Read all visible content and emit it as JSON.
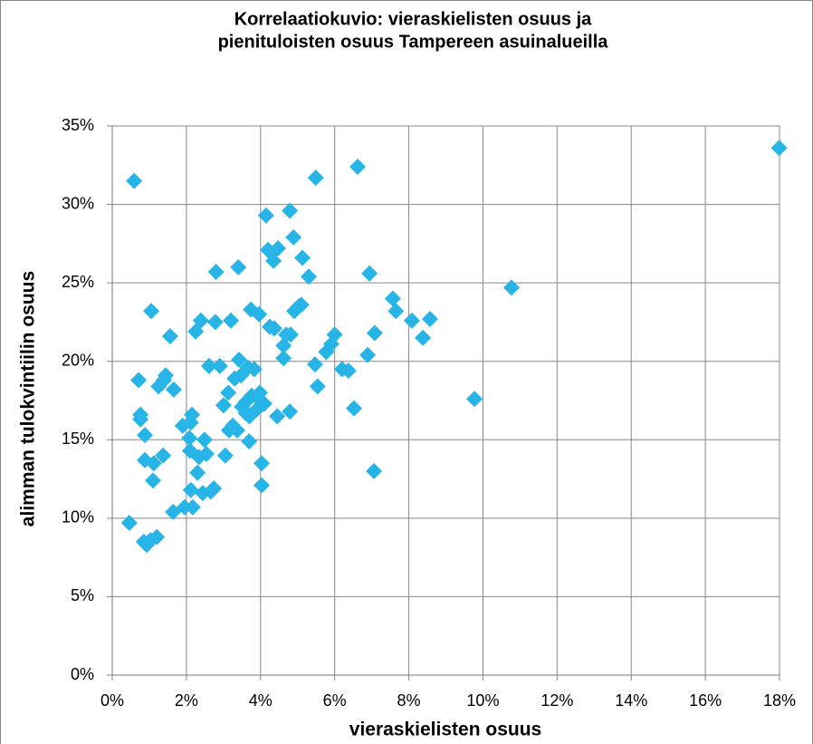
{
  "chart_data": {
    "type": "scatter",
    "title": [
      "Korrelaatiokuvio: vieraskielisten osuus ja",
      "pienituloisten osuus Tampereen asuinalueilla"
    ],
    "xlabel": "vieraskielisten osuus",
    "ylabel": "alimman tulokvintiilin osuus",
    "color": "#27b4e6",
    "grid": true,
    "xlim": [
      0,
      18
    ],
    "ylim": [
      0,
      35
    ],
    "xticks": [
      {
        "value": 0,
        "label": "0%"
      },
      {
        "value": 2,
        "label": "2%"
      },
      {
        "value": 4,
        "label": "4%"
      },
      {
        "value": 6,
        "label": "6%"
      },
      {
        "value": 8,
        "label": "8%"
      },
      {
        "value": 10,
        "label": "10%"
      },
      {
        "value": 12,
        "label": "12%"
      },
      {
        "value": 14,
        "label": "14%"
      },
      {
        "value": 16,
        "label": "16%"
      },
      {
        "value": 18,
        "label": "18%"
      }
    ],
    "yticks": [
      {
        "value": 0,
        "label": "0%"
      },
      {
        "value": 5,
        "label": "5%"
      },
      {
        "value": 10,
        "label": "10%"
      },
      {
        "value": 15,
        "label": "15%"
      },
      {
        "value": 20,
        "label": "20%"
      },
      {
        "value": 25,
        "label": "25%"
      },
      {
        "value": 30,
        "label": "30%"
      },
      {
        "value": 35,
        "label": "35%"
      }
    ],
    "x": [
      0.59,
      0.46,
      0.71,
      0.76,
      0.76,
      0.88,
      0.88,
      0.85,
      0.93,
      1.03,
      1.2,
      1.05,
      1.1,
      1.12,
      1.25,
      1.37,
      1.39,
      1.44,
      1.56,
      1.66,
      1.64,
      1.9,
      1.95,
      2.08,
      2.12,
      2.15,
      2.1,
      2.12,
      2.17,
      2.25,
      2.3,
      2.34,
      2.39,
      2.44,
      2.49,
      2.54,
      2.66,
      2.74,
      2.61,
      2.78,
      2.8,
      2.9,
      3.0,
      3.05,
      3.13,
      3.15,
      3.2,
      3.25,
      3.3,
      3.4,
      3.37,
      3.42,
      3.47,
      3.5,
      3.6,
      3.6,
      3.66,
      3.69,
      3.7,
      3.74,
      3.76,
      3.83,
      3.88,
      3.96,
      3.98,
      4.0,
      4.03,
      4.03,
      4.1,
      4.15,
      4.2,
      4.25,
      4.3,
      4.35,
      4.37,
      4.47,
      4.45,
      4.62,
      4.62,
      4.69,
      4.79,
      4.81,
      4.79,
      4.89,
      4.91,
      5.03,
      5.13,
      5.1,
      5.3,
      5.49,
      5.47,
      5.54,
      5.77,
      5.91,
      6.0,
      6.2,
      6.37,
      6.52,
      6.62,
      6.89,
      6.94,
      7.08,
      7.06,
      7.57,
      7.65,
      8.08,
      8.38,
      8.57,
      9.77,
      10.77,
      17.99
    ],
    "y": [
      31.5,
      9.7,
      18.8,
      16.3,
      16.6,
      13.7,
      15.3,
      8.5,
      8.3,
      8.6,
      8.8,
      23.2,
      12.4,
      13.5,
      18.4,
      14.0,
      18.8,
      19.1,
      21.6,
      18.2,
      10.4,
      15.9,
      10.7,
      15.1,
      16.1,
      16.6,
      14.3,
      11.8,
      10.7,
      21.9,
      12.9,
      13.9,
      22.6,
      11.6,
      15.0,
      14.1,
      11.7,
      11.9,
      19.7,
      22.5,
      25.7,
      19.7,
      17.2,
      14.0,
      18.0,
      15.6,
      22.6,
      15.9,
      18.9,
      26.0,
      15.6,
      20.1,
      19.1,
      17.1,
      16.7,
      17.4,
      19.6,
      14.9,
      16.5,
      23.3,
      17.8,
      19.5,
      16.9,
      23.0,
      18.0,
      17.5,
      13.5,
      12.1,
      17.3,
      29.3,
      27.1,
      22.2,
      26.9,
      26.4,
      22.1,
      27.2,
      16.5,
      21.0,
      20.2,
      21.7,
      29.6,
      21.7,
      16.8,
      27.9,
      23.2,
      23.5,
      26.6,
      23.6,
      25.4,
      31.7,
      19.8,
      18.4,
      20.6,
      21.1,
      21.7,
      19.5,
      19.4,
      17.0,
      32.4,
      20.4,
      25.6,
      21.8,
      13.0,
      24.0,
      23.2,
      22.6,
      21.5,
      22.7,
      17.6,
      24.7,
      33.6
    ]
  }
}
